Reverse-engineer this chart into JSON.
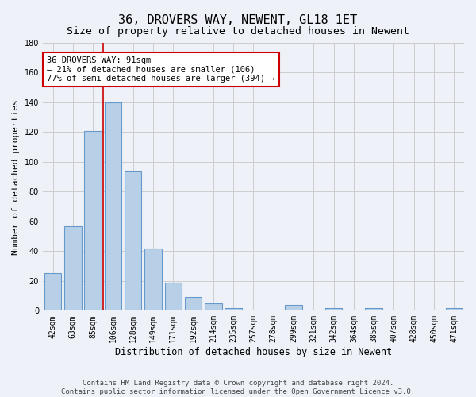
{
  "title": "36, DROVERS WAY, NEWENT, GL18 1ET",
  "subtitle": "Size of property relative to detached houses in Newent",
  "xlabel": "Distribution of detached houses by size in Newent",
  "ylabel": "Number of detached properties",
  "categories": [
    "42sqm",
    "63sqm",
    "85sqm",
    "106sqm",
    "128sqm",
    "149sqm",
    "171sqm",
    "192sqm",
    "214sqm",
    "235sqm",
    "257sqm",
    "278sqm",
    "299sqm",
    "321sqm",
    "342sqm",
    "364sqm",
    "385sqm",
    "407sqm",
    "428sqm",
    "450sqm",
    "471sqm"
  ],
  "values": [
    25,
    57,
    121,
    140,
    94,
    42,
    19,
    9,
    5,
    2,
    0,
    0,
    4,
    0,
    2,
    0,
    2,
    0,
    0,
    0,
    2
  ],
  "bar_color": "#b8cfe8",
  "bar_edge_color": "#6699cc",
  "vline_x_index": 2.5,
  "vline_color": "#cc0000",
  "annotation_text": "36 DROVERS WAY: 91sqm\n← 21% of detached houses are smaller (106)\n77% of semi-detached houses are larger (394) →",
  "annotation_box_color": "#ffffff",
  "annotation_box_edge": "#cc0000",
  "ylim": [
    0,
    180
  ],
  "yticks": [
    0,
    20,
    40,
    60,
    80,
    100,
    120,
    140,
    160,
    180
  ],
  "grid_color": "#cccccc",
  "bg_color": "#eef2f8",
  "footer_line1": "Contains HM Land Registry data © Crown copyright and database right 2024.",
  "footer_line2": "Contains public sector information licensed under the Open Government Licence v3.0.",
  "title_fontsize": 11,
  "subtitle_fontsize": 9.5,
  "xlabel_fontsize": 8.5,
  "ylabel_fontsize": 8,
  "tick_fontsize": 7,
  "annotation_fontsize": 7.5,
  "footer_fontsize": 6.5
}
